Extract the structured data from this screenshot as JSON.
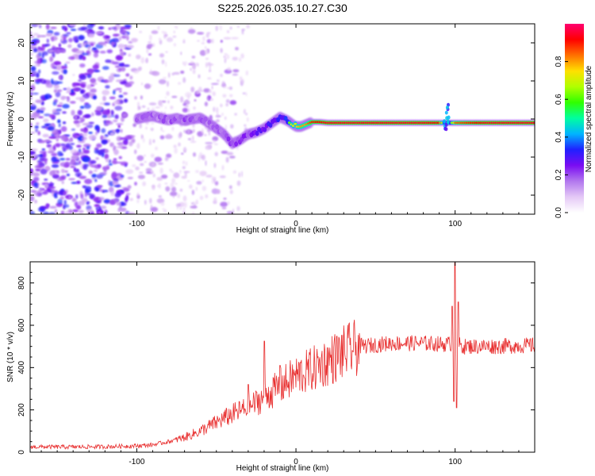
{
  "figure": {
    "title": "S225.2026.035.10.27.C30"
  },
  "chart_data": [
    {
      "type": "heatmap",
      "title": "S225.2026.035.10.27.C30",
      "xlabel": "Height of straight line (km)",
      "ylabel": "Frequency (Hz)",
      "xlim": [
        -167,
        150
      ],
      "ylim": [
        -25,
        25
      ],
      "x_ticks": [
        -100,
        0,
        100
      ],
      "y_ticks": [
        -20,
        -10,
        0,
        10,
        20
      ],
      "colorbar": {
        "label": "Normalized spectral amplitude",
        "range": [
          0,
          1
        ],
        "ticks": [
          "0.0",
          "0.2",
          "0.4",
          "0.6",
          "0.8"
        ],
        "colormap": [
          "#ffffff",
          "#e4c8f6",
          "#b277ee",
          "#7a0cf2",
          "#2020ff",
          "#00b4ff",
          "#00ffa0",
          "#30ff00",
          "#b0ff00",
          "#ffe000",
          "#ff7000",
          "#ff0000",
          "#ff0070"
        ]
      },
      "signal_track": {
        "x": [
          -100,
          -95,
          -90,
          -85,
          -80,
          -75,
          -70,
          -65,
          -60,
          -55,
          -50,
          -45,
          -40,
          -35,
          -30,
          -25,
          -20,
          -15,
          -10,
          -5,
          0,
          3,
          6,
          10,
          15,
          20,
          30,
          40,
          60,
          80,
          90,
          95,
          100,
          120,
          150
        ],
        "frequency": [
          0,
          0.5,
          0.8,
          0.2,
          -0.3,
          0.2,
          -0.4,
          0,
          0.3,
          -1,
          -2.5,
          -4,
          -6.5,
          -5.5,
          -4,
          -3.5,
          -2.5,
          -1,
          0.5,
          -0.5,
          -2,
          -2,
          -1.5,
          -0.8,
          -0.8,
          -1,
          -1,
          -1,
          -1,
          -1,
          -1,
          -1,
          -1,
          -1,
          -1
        ],
        "amplitude": [
          0.25,
          0.3,
          0.3,
          0.28,
          0.3,
          0.3,
          0.32,
          0.3,
          0.3,
          0.3,
          0.28,
          0.3,
          0.32,
          0.35,
          0.38,
          0.4,
          0.42,
          0.45,
          0.5,
          0.55,
          0.75,
          0.8,
          0.8,
          0.9,
          0.92,
          0.95,
          0.95,
          0.95,
          0.95,
          0.95,
          0.92,
          0.35,
          0.85,
          0.95,
          0.95
        ]
      }
    },
    {
      "type": "line",
      "xlabel": "Height of straight line (km)",
      "ylabel": "SNR (10 * v/v)",
      "xlim": [
        -167,
        150
      ],
      "ylim": [
        0,
        900
      ],
      "x_ticks": [
        -100,
        0,
        100
      ],
      "y_ticks": [
        0,
        200,
        400,
        600,
        800
      ],
      "series": [
        {
          "name": "SNR",
          "color": "#e83030",
          "x": [
            -167,
            -140,
            -120,
            -100,
            -90,
            -80,
            -70,
            -60,
            -50,
            -40,
            -30,
            -20,
            -10,
            0,
            10,
            20,
            30,
            40,
            60,
            80,
            95,
            100,
            105,
            120,
            150
          ],
          "values": [
            25,
            25,
            26,
            30,
            35,
            50,
            70,
            100,
            140,
            180,
            210,
            260,
            310,
            360,
            390,
            430,
            470,
            500,
            515,
            515,
            510,
            520,
            500,
            500,
            505
          ],
          "spikes": [
            [
              -30,
              320
            ],
            [
              -20,
              525
            ],
            [
              -10,
              410
            ],
            [
              98,
              690
            ],
            [
              99,
              240
            ],
            [
              100,
              895
            ],
            [
              101,
              210
            ],
            [
              102,
              710
            ]
          ]
        }
      ]
    }
  ]
}
